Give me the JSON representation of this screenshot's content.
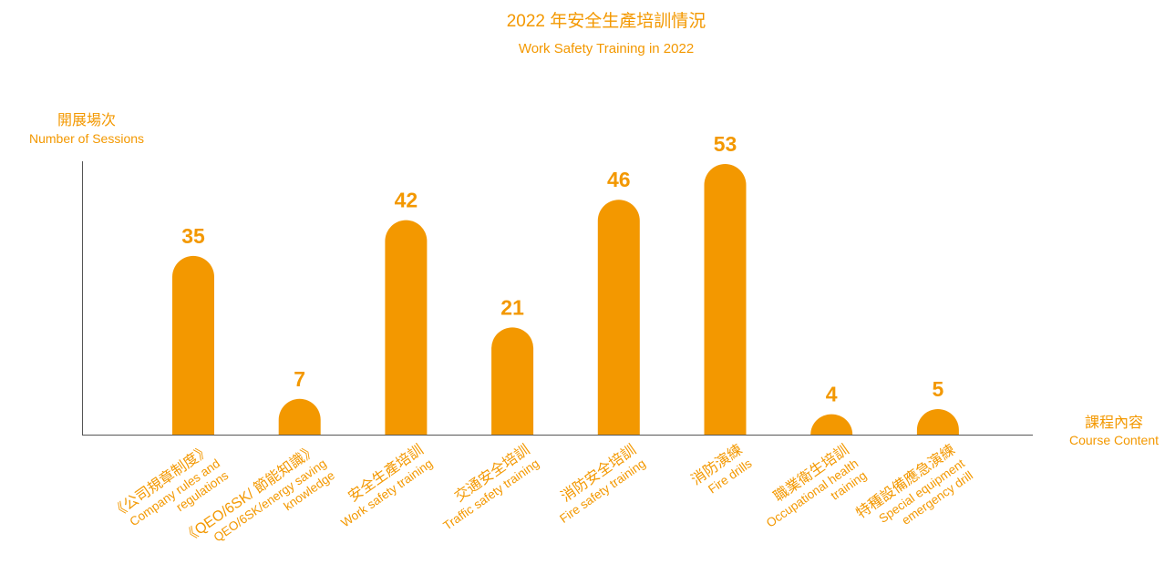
{
  "chart_data": {
    "type": "bar",
    "title": "2022 年安全生產培訓情況",
    "subtitle": "Work Safety Training in 2022",
    "y_label": [
      "開展場次",
      "Number of Sessions"
    ],
    "x_label": [
      "課程內容",
      "Course Content"
    ],
    "categories": [
      [
        "《公司規章制度》",
        "Company rules and",
        "regulations"
      ],
      [
        "《QEO/6SK/ 節能知識》",
        "QEO/6SK/energy saving",
        "knowledge"
      ],
      [
        "安全生產培訓",
        "Work safety training"
      ],
      [
        "交通安全培訓",
        "Traffic safety training"
      ],
      [
        "消防安全培訓",
        "Fire safety training"
      ],
      [
        "消防演練",
        "Fire drills"
      ],
      [
        "職業衛生培訓",
        "Occupational health",
        "training"
      ],
      [
        "特種設備應急演練",
        "Special equipment",
        "emergency drill"
      ]
    ],
    "values": [
      35,
      7,
      42,
      21,
      46,
      53,
      4,
      5
    ],
    "color": "#f39800"
  }
}
